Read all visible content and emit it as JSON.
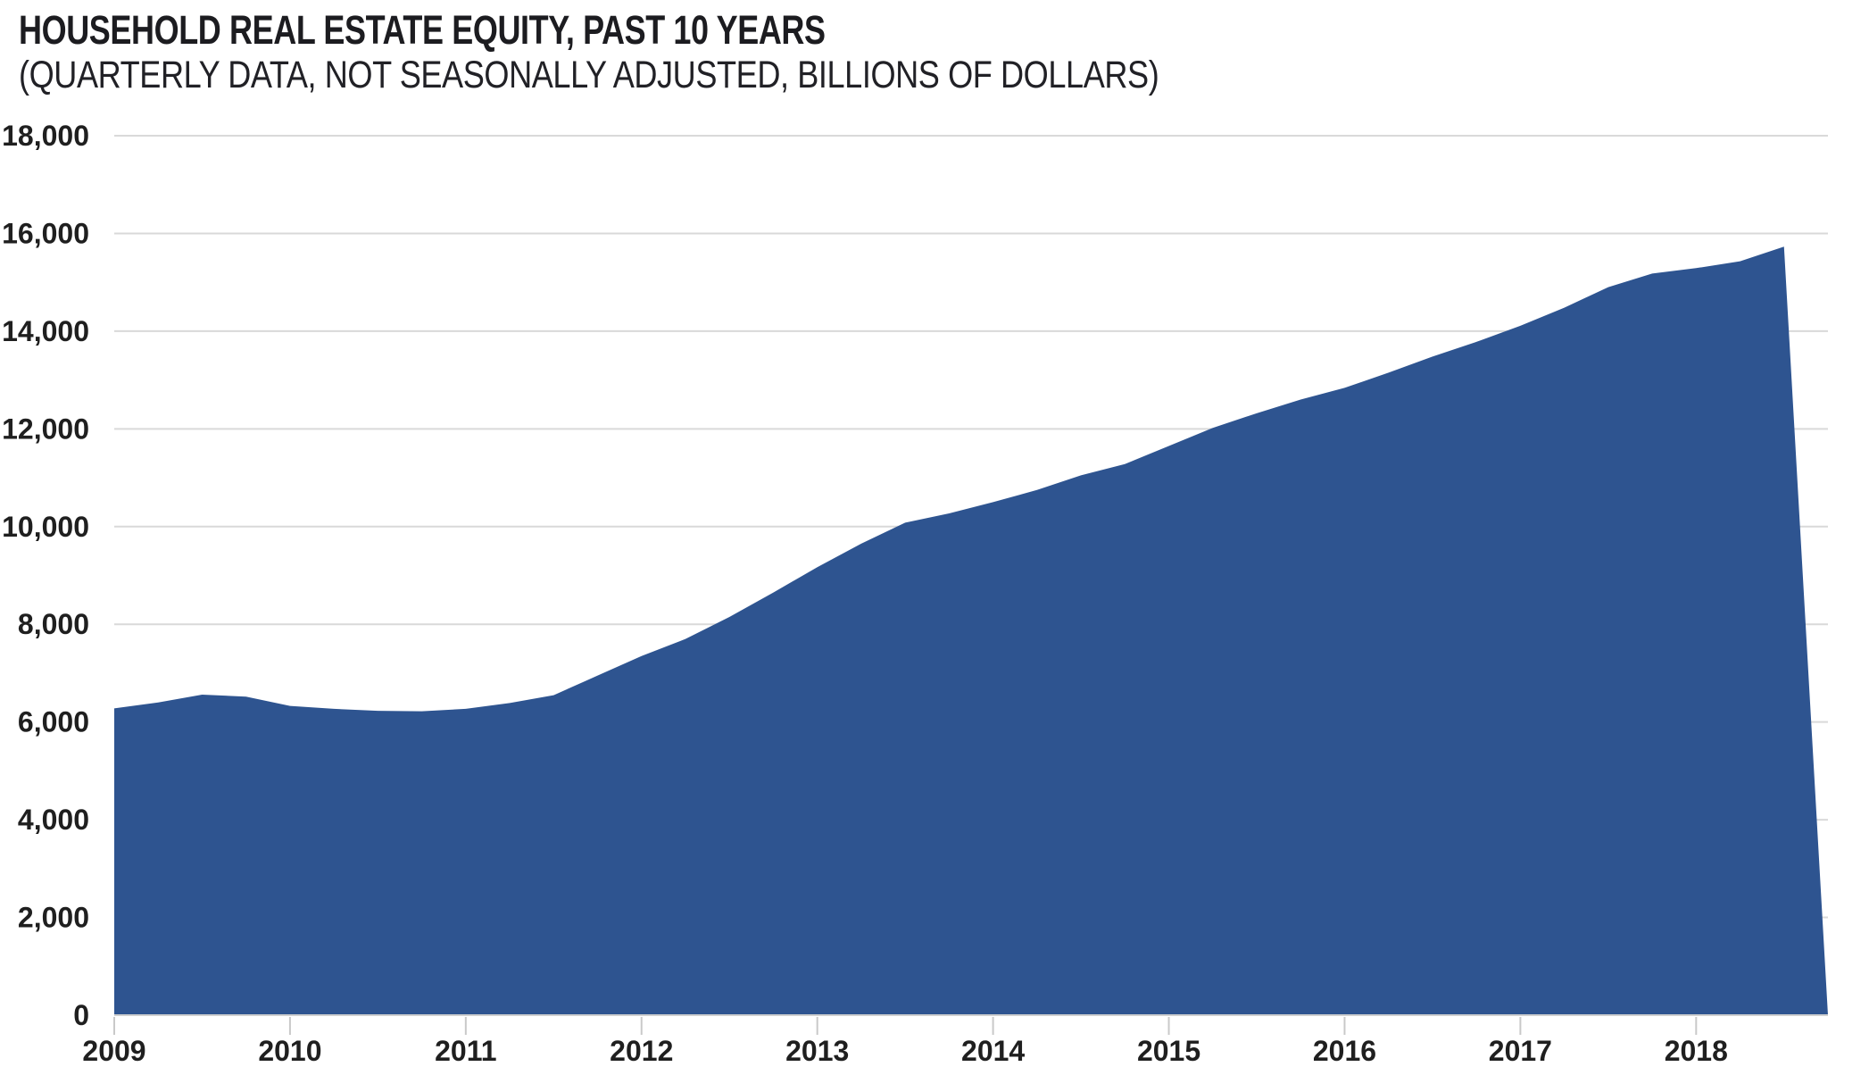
{
  "header": {
    "title": "HOUSEHOLD REAL ESTATE EQUITY, PAST 10 YEARS",
    "subtitle": "(QUARTERLY DATA, NOT SEASONALLY ADJUSTED, BILLIONS OF DOLLARS)"
  },
  "chart_data": {
    "type": "area",
    "title": "HOUSEHOLD REAL ESTATE EQUITY, PAST 10 YEARS",
    "subtitle": "(QUARTERLY DATA, NOT SEASONALLY ADJUSTED, BILLIONS OF DOLLARS)",
    "x": [
      "2009 Q1",
      "2009 Q2",
      "2009 Q3",
      "2009 Q4",
      "2010 Q1",
      "2010 Q2",
      "2010 Q3",
      "2010 Q4",
      "2011 Q1",
      "2011 Q2",
      "2011 Q3",
      "2011 Q4",
      "2012 Q1",
      "2012 Q2",
      "2012 Q3",
      "2012 Q4",
      "2013 Q1",
      "2013 Q2",
      "2013 Q3",
      "2013 Q4",
      "2014 Q1",
      "2014 Q2",
      "2014 Q3",
      "2014 Q4",
      "2015 Q1",
      "2015 Q2",
      "2015 Q3",
      "2015 Q4",
      "2016 Q1",
      "2016 Q2",
      "2016 Q3",
      "2016 Q4",
      "2017 Q1",
      "2017 Q2",
      "2017 Q3",
      "2017 Q4",
      "2018 Q1",
      "2018 Q2",
      "2018 Q3",
      "2018 Q4"
    ],
    "series": [
      {
        "name": "Household real estate equity (billions of dollars)",
        "color": "#2E5490",
        "values": [
          6280,
          6400,
          6560,
          6520,
          6330,
          6270,
          6230,
          6220,
          6270,
          6390,
          6550,
          6950,
          7350,
          7700,
          8150,
          8650,
          9170,
          9650,
          10080,
          10270,
          10500,
          10750,
          11050,
          11280,
          11650,
          12020,
          12320,
          12600,
          12840,
          13150,
          13480,
          13780,
          14110,
          14480,
          14900,
          15180,
          15290,
          15430,
          15730,
          0
        ]
      }
    ],
    "x_axis": {
      "tick_labels": [
        "2009",
        "2010",
        "2011",
        "2012",
        "2013",
        "2014",
        "2015",
        "2016",
        "2017",
        "2018"
      ],
      "ticks_every_quarters": 4
    },
    "y_axis": {
      "min": 0,
      "max": 18000,
      "step": 2000,
      "tick_labels": [
        "0",
        "2,000",
        "4,000",
        "6,000",
        "8,000",
        "10,000",
        "12,000",
        "14,000",
        "16,000",
        "18,000"
      ]
    },
    "grid": true,
    "legend": false,
    "colors": {
      "area_fill": "#2E5490",
      "gridline": "#D9D9D9",
      "axis_line": "#CFCFCF",
      "tick_mark": "#C9C9C9",
      "label_text": "#1F1F1F"
    }
  }
}
